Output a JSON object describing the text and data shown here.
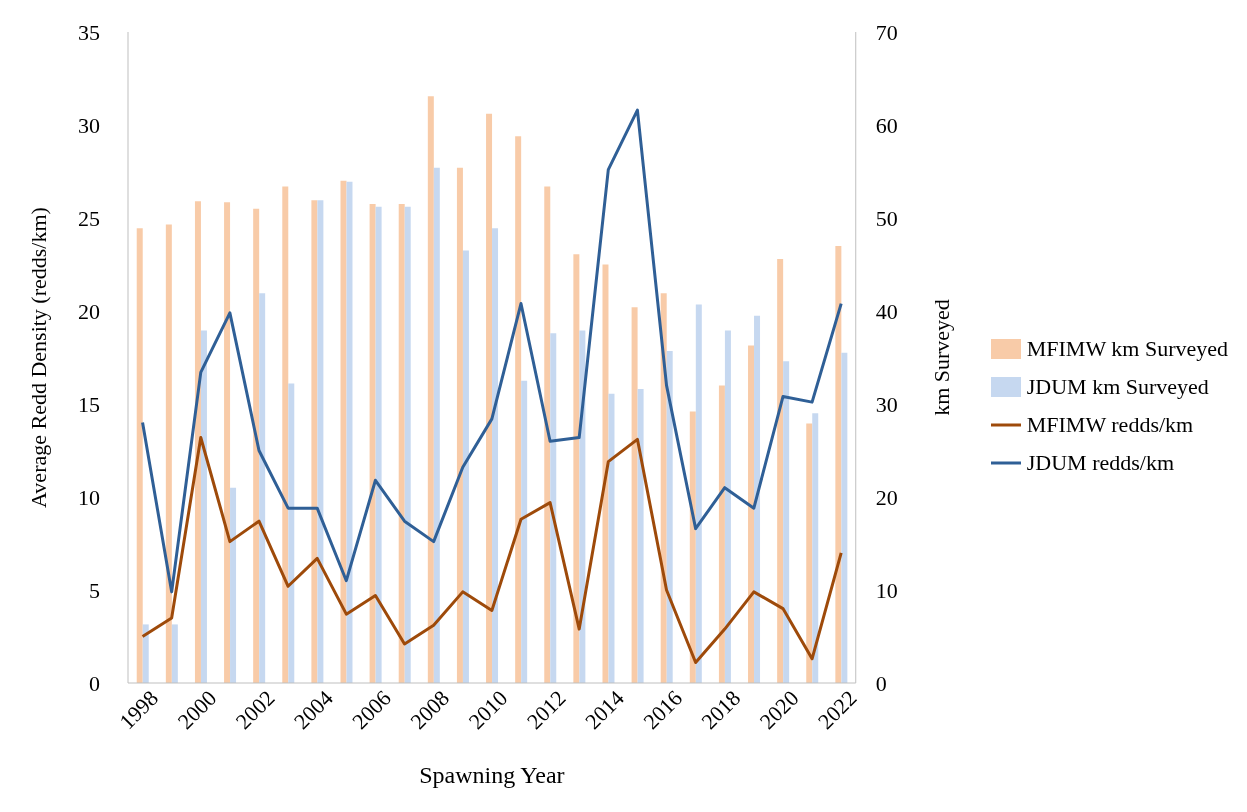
{
  "chart_data": {
    "type": "bar",
    "xlabel": "Spawning Year",
    "ylabel": "Average Redd Density (redds/km)",
    "y2label": "km Surveyed",
    "categories": [
      "1998",
      null,
      "2000",
      null,
      "2002",
      null,
      "2004",
      null,
      "2006",
      null,
      "2008",
      null,
      "2010",
      null,
      "2012",
      null,
      "2014",
      null,
      "2016",
      null,
      "2018",
      null,
      "2020",
      null,
      "2022"
    ],
    "series": [
      {
        "name": "MFIMW km Surveyed",
        "axis": "y2",
        "color": "#f8cba8",
        "values": [
          48.9,
          49.3,
          51.8,
          51.7,
          51.0,
          53.4,
          51.9,
          54.0,
          51.5,
          51.5,
          63.1,
          55.4,
          61.2,
          58.8,
          53.4,
          46.1,
          45.0,
          40.4,
          41.9,
          29.2,
          32.0,
          36.3,
          45.6,
          27.9,
          47.0
        ]
      },
      {
        "name": "JDUM km Surveyed",
        "axis": "y2",
        "color": "#c6d8f0",
        "values": [
          6.3,
          6.3,
          37.9,
          21.0,
          41.9,
          32.2,
          51.9,
          53.9,
          51.2,
          51.2,
          55.4,
          46.5,
          48.9,
          32.5,
          37.6,
          37.9,
          31.1,
          31.6,
          35.7,
          40.7,
          37.9,
          39.5,
          34.6,
          29.0,
          35.5
        ]
      },
      {
        "name": "MFIMW redds/km",
        "type": "line",
        "color": "#9e4a0a",
        "values": [
          2.5,
          3.5,
          13.2,
          7.6,
          8.7,
          5.2,
          6.7,
          3.7,
          4.7,
          2.1,
          3.1,
          4.9,
          3.9,
          8.8,
          9.7,
          2.9,
          11.9,
          13.1,
          5.0,
          1.1,
          2.9,
          4.9,
          4.0,
          1.3,
          7.0
        ]
      },
      {
        "name": "JDUM redds/km",
        "type": "line",
        "color": "#2f5f96",
        "values": [
          14.0,
          4.9,
          16.7,
          19.9,
          12.5,
          9.4,
          9.4,
          5.5,
          10.9,
          8.7,
          7.6,
          11.6,
          14.2,
          20.4,
          13.0,
          13.2,
          27.6,
          30.8,
          16.0,
          8.3,
          10.5,
          9.4,
          15.4,
          15.1,
          20.4
        ]
      }
    ],
    "ylim": [
      0,
      35
    ],
    "yticks": [
      0,
      5,
      10,
      15,
      20,
      25,
      30,
      35
    ],
    "y2lim": [
      0,
      70
    ],
    "y2ticks": [
      0,
      10,
      20,
      30,
      40,
      50,
      60,
      70
    ],
    "grid": false,
    "legend": "right",
    "marker": "none",
    "line_style": "solid"
  }
}
